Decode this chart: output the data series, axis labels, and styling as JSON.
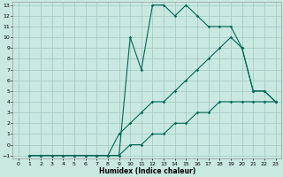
{
  "xlabel": "Humidex (Indice chaleur)",
  "bg_color": "#c8e8e0",
  "grid_color": "#a8ccc4",
  "line_color": "#006858",
  "xlim": [
    0,
    23
  ],
  "ylim": [
    -1,
    13
  ],
  "xticks": [
    0,
    1,
    2,
    3,
    4,
    5,
    6,
    7,
    8,
    9,
    10,
    11,
    12,
    13,
    14,
    15,
    16,
    17,
    18,
    19,
    20,
    21,
    22,
    23
  ],
  "yticks": [
    -1,
    0,
    1,
    2,
    3,
    4,
    5,
    6,
    7,
    8,
    9,
    10,
    11,
    12,
    13
  ],
  "line_bottom_x": [
    1,
    2,
    3,
    4,
    5,
    6,
    7,
    8,
    9,
    10,
    11,
    12,
    13,
    14,
    15,
    16,
    17,
    18,
    19,
    20,
    21,
    22,
    23
  ],
  "line_bottom_y": [
    -1,
    -1,
    -1,
    -1,
    -1,
    -1,
    -1,
    -1,
    -1,
    0,
    0,
    1,
    1,
    2,
    2,
    3,
    3,
    4,
    4,
    4,
    4,
    4,
    4
  ],
  "line_mid_x": [
    1,
    2,
    3,
    4,
    5,
    6,
    7,
    8,
    9,
    10,
    11,
    12,
    13,
    14,
    15,
    16,
    17,
    18,
    19,
    20,
    21,
    22,
    23
  ],
  "line_mid_y": [
    -1,
    -1,
    -1,
    -1,
    -1,
    -1,
    -1,
    -1,
    1,
    2,
    3,
    4,
    4,
    5,
    6,
    7,
    8,
    9,
    10,
    9,
    5,
    5,
    4
  ],
  "line_top_x": [
    1,
    2,
    3,
    4,
    5,
    6,
    7,
    8,
    9,
    10,
    11,
    12,
    13,
    14,
    15,
    16,
    17,
    18,
    19,
    20,
    21,
    22,
    23
  ],
  "line_top_y": [
    -1,
    -1,
    -1,
    -1,
    -1,
    -1,
    -1,
    -1,
    -1,
    10,
    7,
    13,
    13,
    12,
    13,
    12,
    11,
    11,
    11,
    9,
    5,
    5,
    4
  ]
}
